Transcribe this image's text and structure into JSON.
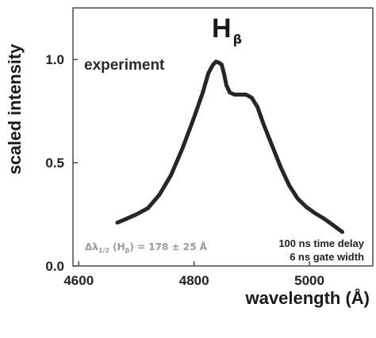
{
  "chart_data": {
    "type": "line",
    "title": "H",
    "title_subscript": "β",
    "xlabel": "wavelength (Å)",
    "ylabel": "scaled intensity",
    "xlim": [
      4590,
      5110
    ],
    "ylim": [
      0.0,
      1.25
    ],
    "xticks": [
      4600,
      4800,
      5000
    ],
    "xtick_labels": [
      "4600",
      "4800",
      "5000"
    ],
    "yticks": [
      0.0,
      0.5,
      1.0
    ],
    "ytick_labels": [
      "0.0",
      "0.5",
      "1.0"
    ],
    "grid": false,
    "legend": "none",
    "series": [
      {
        "color": "#262626",
        "points": [
          [
            4667,
            0.21
          ],
          [
            4680,
            0.225
          ],
          [
            4700,
            0.25
          ],
          [
            4720,
            0.28
          ],
          [
            4740,
            0.345
          ],
          [
            4760,
            0.44
          ],
          [
            4780,
            0.57
          ],
          [
            4800,
            0.72
          ],
          [
            4815,
            0.84
          ],
          [
            4825,
            0.935
          ],
          [
            4833,
            0.975
          ],
          [
            4838,
            0.99
          ],
          [
            4843,
            0.985
          ],
          [
            4848,
            0.975
          ],
          [
            4852,
            0.93
          ],
          [
            4856,
            0.875
          ],
          [
            4862,
            0.84
          ],
          [
            4870,
            0.83
          ],
          [
            4880,
            0.83
          ],
          [
            4890,
            0.83
          ],
          [
            4900,
            0.815
          ],
          [
            4910,
            0.77
          ],
          [
            4920,
            0.69
          ],
          [
            4935,
            0.585
          ],
          [
            4950,
            0.48
          ],
          [
            4965,
            0.39
          ],
          [
            4980,
            0.325
          ],
          [
            4995,
            0.285
          ],
          [
            5010,
            0.255
          ],
          [
            5025,
            0.23
          ],
          [
            5040,
            0.2
          ],
          [
            5057,
            0.165
          ]
        ]
      }
    ],
    "annotations": {
      "experiment": "experiment",
      "width_prefix": "Δλ",
      "width_sub": "1/2",
      "width_middle": " (H",
      "width_middle_sub": "β",
      "width_value": ") = 178 ± 25 Å",
      "delay": "100 ns time delay",
      "gate": "6 ns gate width"
    }
  }
}
